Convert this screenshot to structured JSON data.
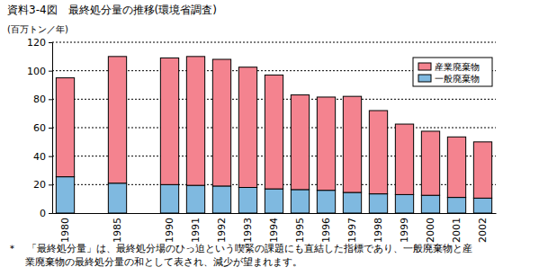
{
  "chart_data": {
    "type": "bar",
    "stacked": true,
    "title": "資料3-4図　最終処分量の推移(環境省調査)",
    "y_label": "(百万トン／年)",
    "categories": [
      "1980",
      null,
      "1985",
      null,
      "1990",
      "1991",
      "1992",
      "1993",
      "1994",
      "1995",
      "1996",
      "1997",
      "1998",
      "1999",
      "2000",
      "2001",
      "2002"
    ],
    "series": [
      {
        "name": "一般廃棄物",
        "color": "#7fb9e0",
        "values": [
          25.5,
          null,
          21,
          null,
          20,
          19.5,
          19,
          18,
          17,
          16.5,
          16,
          14.5,
          13.5,
          13,
          12.5,
          11,
          10.5
        ]
      },
      {
        "name": "産業廃棄物",
        "color": "#f4838f",
        "values": [
          69.5,
          null,
          89,
          null,
          89,
          90.5,
          89,
          84.5,
          80,
          66.5,
          65.5,
          67.5,
          58.5,
          49.5,
          45,
          42.5,
          39.5
        ]
      }
    ],
    "ylim": [
      0,
      120
    ],
    "yticks": [
      0,
      20,
      40,
      60,
      80,
      100,
      120
    ],
    "grid": true,
    "legend": "upper right",
    "annotations": [
      "＊　「最終処分量」は、最終処分場のひっ迫という喫緊の課題にも直結した指標であり、一般廃棄物と産",
      "業廃棄物の最終処分量の和として表され、減少が望まれます。"
    ]
  }
}
